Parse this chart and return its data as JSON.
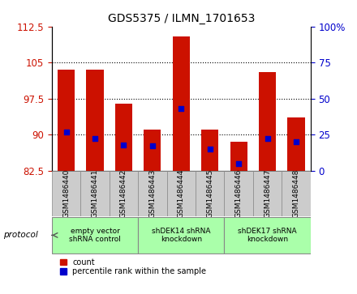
{
  "title": "GDS5375 / ILMN_1701653",
  "samples": [
    "GSM1486440",
    "GSM1486441",
    "GSM1486442",
    "GSM1486443",
    "GSM1486444",
    "GSM1486445",
    "GSM1486446",
    "GSM1486447",
    "GSM1486448"
  ],
  "counts": [
    103.5,
    103.5,
    96.5,
    91.0,
    110.5,
    91.0,
    88.5,
    103.0,
    93.5
  ],
  "percentile_ranks": [
    27,
    22,
    18,
    17,
    43,
    15,
    5,
    22,
    20
  ],
  "ylim_left": [
    82.5,
    112.5
  ],
  "yticks_left": [
    82.5,
    90,
    97.5,
    105,
    112.5
  ],
  "ylim_right": [
    0,
    100
  ],
  "yticks_right": [
    0,
    25,
    50,
    75,
    100
  ],
  "bar_color": "#cc1100",
  "dot_color": "#0000cc",
  "bar_width": 0.6,
  "protocols": [
    {
      "label": "empty vector\nshRNA control",
      "start": 0,
      "end": 3,
      "color": "#aaffaa"
    },
    {
      "label": "shDEK14 shRNA\nknockdown",
      "start": 3,
      "end": 6,
      "color": "#aaffaa"
    },
    {
      "label": "shDEK17 shRNA\nknockdown",
      "start": 6,
      "end": 9,
      "color": "#aaffaa"
    }
  ],
  "protocol_label": "protocol",
  "legend_count_label": "count",
  "legend_pct_label": "percentile rank within the sample",
  "title_fontsize": 10,
  "axis_label_color_left": "#cc1100",
  "axis_label_color_right": "#0000cc",
  "label_box_color": "#cccccc",
  "label_box_edge": "#888888",
  "bg_color": "#ffffff"
}
